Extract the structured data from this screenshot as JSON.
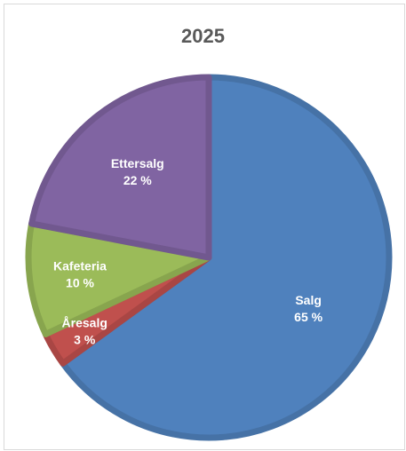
{
  "chart_data": {
    "type": "pie",
    "title": "2025",
    "categories": [
      "Salg",
      "Åresalg",
      "Kafeteria",
      "Ettersalg"
    ],
    "values": [
      65,
      3,
      10,
      22
    ],
    "value_labels": [
      "65 %",
      "3 %",
      "10 %",
      "22 %"
    ],
    "colors": [
      "#4F81BD",
      "#C0504D",
      "#9BBB59",
      "#8064A2"
    ],
    "legend": "none",
    "start_angle": "12 o'clock, clockwise"
  }
}
